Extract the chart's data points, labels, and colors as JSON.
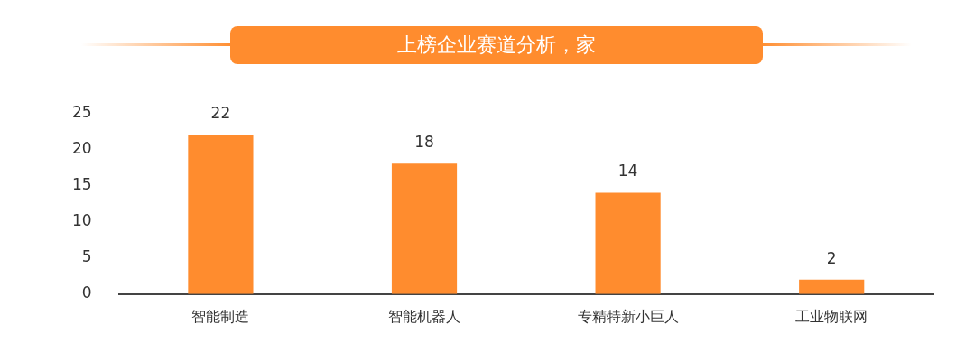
{
  "chart_data": {
    "type": "bar",
    "title": "上榜企业赛道分析，家",
    "categories": [
      "智能制造",
      "智能机器人",
      "专精特新小巨人",
      "工业物联网"
    ],
    "values": [
      22,
      18,
      14,
      2
    ],
    "color": "#ff8c2e",
    "ylim": [
      0,
      25
    ],
    "yticks": [
      0,
      5,
      10,
      15,
      20,
      25
    ],
    "grid": false,
    "legend": false,
    "data_labels": true
  }
}
